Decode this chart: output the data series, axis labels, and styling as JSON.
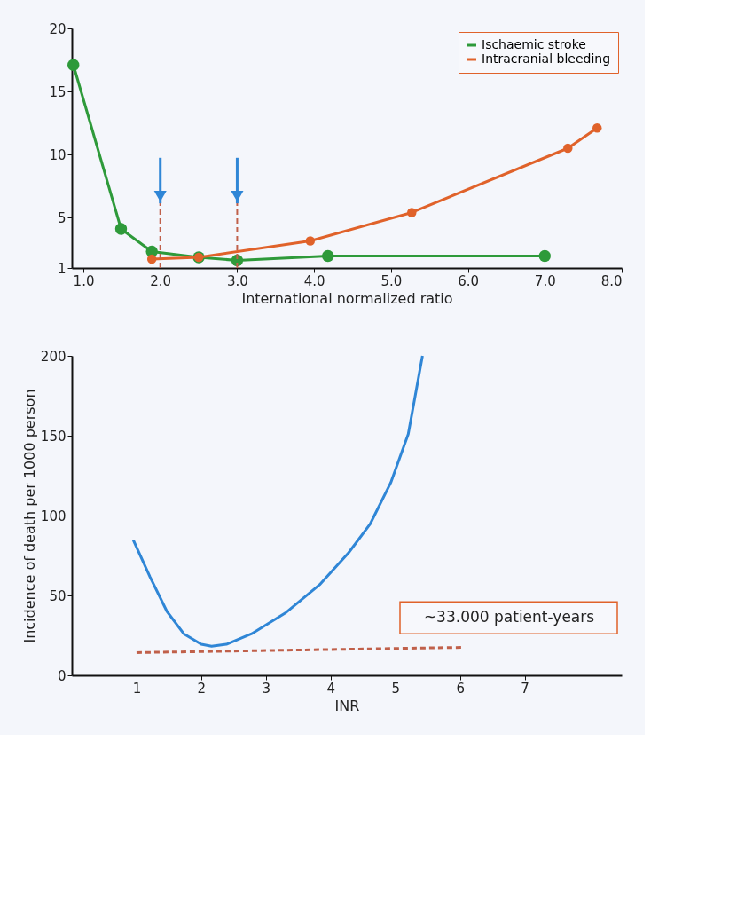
{
  "chart_data": [
    {
      "type": "line",
      "xlabel": "International normalized ratio",
      "xlim": [
        0.85,
        8.0
      ],
      "xticks": [
        {
          "value": 1,
          "label": "1.0"
        },
        {
          "value": 2,
          "label": "2.0"
        },
        {
          "value": 3,
          "label": "3.0"
        },
        {
          "value": 4,
          "label": "4.0"
        },
        {
          "value": 5,
          "label": "5.0"
        },
        {
          "value": 6,
          "label": "6.0"
        },
        {
          "value": 7,
          "label": "7.0"
        },
        {
          "value": 8,
          "label": "8.0"
        }
      ],
      "ylim": [
        1,
        20
      ],
      "yticks": [
        1,
        5,
        10,
        15,
        20
      ],
      "marker": "circle",
      "grid": false,
      "legend": "top right",
      "series": [
        {
          "name": "Ischaemic stroke",
          "color": "#2e9a3a",
          "x": [
            0.87,
            1.49,
            1.89,
            2.5,
            3.0,
            4.18,
            7.0
          ],
          "values": [
            17.1,
            4.1,
            2.3,
            1.85,
            1.6,
            1.95,
            1.95
          ]
        },
        {
          "name": "Intracranial bleeding",
          "color": "#e0622a",
          "x": [
            1.89,
            2.5,
            3.95,
            5.27,
            7.3,
            7.68
          ],
          "values": [
            1.7,
            1.85,
            3.15,
            5.4,
            10.5,
            12.1
          ]
        }
      ],
      "ref_lines": [
        {
          "axis": "x",
          "value": 2.0,
          "color": "#c0604a",
          "line_style": "dashed"
        },
        {
          "axis": "x",
          "value": 3.0,
          "color": "#c0604a",
          "line_style": "dashed"
        }
      ]
    },
    {
      "type": "line",
      "xlabel": "INR",
      "ylabel": "Incidence of death per 1000 person",
      "xlim": [
        0,
        8.5
      ],
      "xticks": [
        1,
        2,
        3,
        4,
        5,
        6,
        7
      ],
      "ylim": [
        0,
        200
      ],
      "yticks": [
        0,
        50,
        100,
        150,
        200
      ],
      "grid": false,
      "legend": false,
      "series": [
        {
          "color": "#2f86d6",
          "x": [
            0.95,
            1.21,
            1.47,
            1.73,
            2.0,
            2.16,
            2.39,
            2.78,
            3.3,
            3.83,
            4.28,
            4.61,
            4.93,
            5.2,
            5.42
          ],
          "values": [
            84.6,
            61.5,
            40,
            26,
            19.4,
            18.2,
            19.4,
            26,
            39,
            56.7,
            76.8,
            94.6,
            120.6,
            151,
            200
          ]
        },
        {
          "color": "#c0604a",
          "line_style": "dashed",
          "x": [
            1.0,
            6.05
          ],
          "values": [
            14.2,
            17.5
          ]
        }
      ],
      "annotations": [
        "~33.000 patient-years"
      ]
    }
  ]
}
